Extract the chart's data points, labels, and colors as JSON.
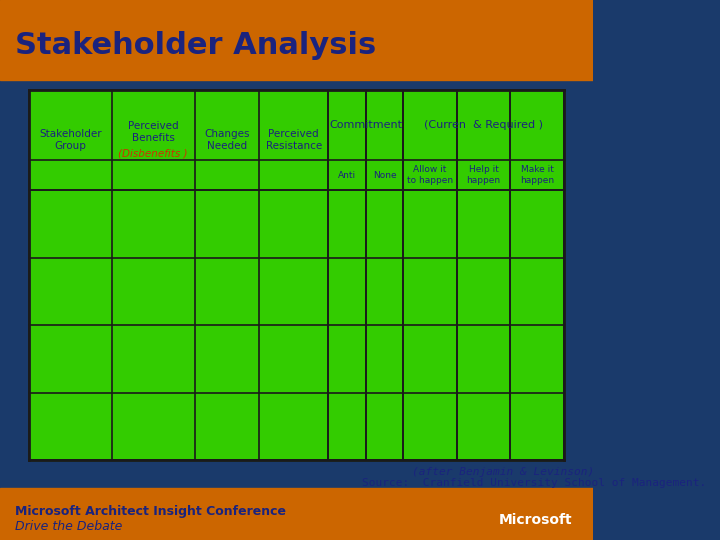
{
  "title": "Stakeholder Analysis",
  "title_color": "#1a237e",
  "title_fontsize": 22,
  "header_bg": "#cc6600",
  "slide_bg": "#1a3a6b",
  "table_bg": "#33cc00",
  "table_border": "#1a1a1a",
  "footer_bg": "#cc6600",
  "footer_text1": "Microsoft Architect Insight Conference",
  "footer_text2": "Drive the Debate",
  "source_text": "Source:  Cranfield University School of Management.",
  "attribution": "(after Benjamin & Levinson)",
  "col1_header": [
    "Stakeholder",
    "Group"
  ],
  "col2_header": [
    "Perceived",
    "Benefits",
    "(Disbenefits )"
  ],
  "col3_header": [
    "Changes",
    "Needed"
  ],
  "col4_header": [
    "Perceived",
    "Resistance"
  ],
  "commitment_header": "Commitment",
  "curren_header": "(Curren  & Required )",
  "sub_headers": [
    "Anti",
    "None",
    "Allow it\nto happen",
    "Help it\nhappen",
    "Make it\nhappen"
  ],
  "header_text_color": "#1a237e",
  "disbenefits_color": "#cc3300",
  "commitment_text_color": "#1a237e",
  "sub_header_text_color": "#1a237e",
  "source_color": "#1a237e",
  "attribution_color": "#1a237e",
  "footer_text_color": "#1a237e"
}
